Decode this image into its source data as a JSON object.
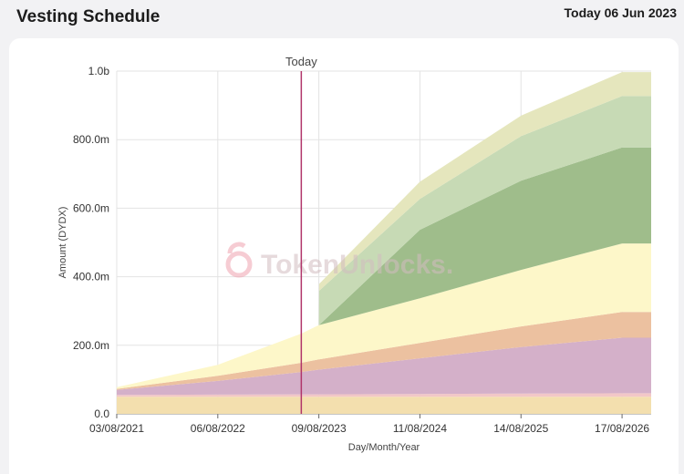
{
  "header": {
    "title": "Vesting Schedule",
    "date": "Today 06 Jun 2023"
  },
  "chart_data": {
    "type": "area",
    "stacked": true,
    "xlabel": "Day/Month/Year",
    "ylabel": "Amount (DYDX)",
    "ylim": [
      0,
      1000
    ],
    "xlim": [
      "2021-08-03",
      "2026-12-01"
    ],
    "x_tick_labels": [
      "03/08/2021",
      "06/08/2022",
      "09/08/2023",
      "11/08/2024",
      "14/08/2025",
      "17/08/2026"
    ],
    "y_tick_labels": [
      "0.0",
      "200.0m",
      "400.0m",
      "600.0m",
      "800.0m",
      "1.0b"
    ],
    "today_marker": {
      "label": "Today",
      "date": "2023-06-06"
    },
    "watermark": "TokenUnlocks.",
    "colors": [
      "#f3dfae",
      "#f2c7c7",
      "#d4b0c9",
      "#ecc1a0",
      "#fdf7c9",
      "#9fbd8b",
      "#c7dab5",
      "#e5e6bd"
    ],
    "x": [
      "2021-08-03",
      "2022-08-06",
      "2023-06-06",
      "2023-08-09",
      "2023-08-10",
      "2024-08-11",
      "2025-08-14",
      "2026-08-17",
      "2026-12-01"
    ],
    "series": [
      {
        "values": [
          50,
          50,
          50,
          50,
          50,
          50,
          50,
          50,
          50
        ]
      },
      {
        "values": [
          5,
          6,
          7,
          7,
          7,
          8,
          9,
          10,
          10
        ]
      },
      {
        "values": [
          15,
          40,
          65,
          72,
          72,
          104,
          136,
          162,
          162
        ]
      },
      {
        "values": [
          3,
          15,
          27,
          30,
          30,
          45,
          60,
          75,
          75
        ]
      },
      {
        "values": [
          5,
          32,
          85,
          100,
          100,
          130,
          165,
          200,
          200
        ]
      },
      {
        "values": [
          0,
          0,
          0,
          0,
          0,
          200,
          260,
          280,
          280
        ]
      },
      {
        "values": [
          0,
          0,
          0,
          0,
          100,
          90,
          130,
          150,
          150
        ]
      },
      {
        "values": [
          0,
          0,
          0,
          0,
          20,
          50,
          60,
          70,
          70
        ]
      }
    ]
  }
}
